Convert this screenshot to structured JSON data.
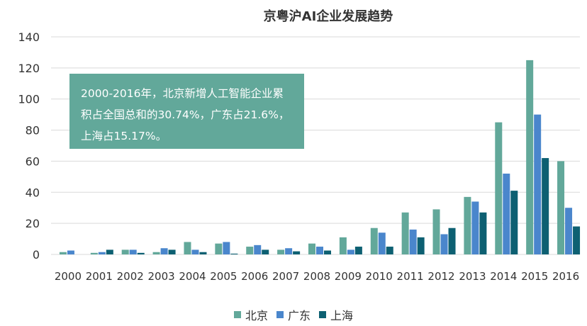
{
  "chart_data": {
    "type": "bar",
    "title": "京粤沪AI企业发展趋势",
    "xlabel": "",
    "ylabel": "",
    "ylim": [
      0,
      140
    ],
    "yticks": [
      0,
      20,
      40,
      60,
      80,
      100,
      120,
      140
    ],
    "grid": true,
    "legend_position": "bottom",
    "categories": [
      "2000",
      "2001",
      "2002",
      "2003",
      "2004",
      "2005",
      "2006",
      "2007",
      "2008",
      "2009",
      "2010",
      "2011",
      "2012",
      "2013",
      "2014",
      "2015",
      "2016"
    ],
    "series": [
      {
        "name": "北京",
        "color": "#62a89a",
        "values": [
          1.5,
          1,
          3,
          1.5,
          8,
          7,
          5,
          3,
          7,
          11,
          17,
          27,
          29,
          37,
          85,
          125,
          60
        ]
      },
      {
        "name": "广东",
        "color": "#4a86cc",
        "values": [
          2.5,
          1.5,
          3,
          4,
          3,
          8,
          6,
          4,
          5,
          3,
          14,
          16,
          13,
          34,
          52,
          90,
          30
        ]
      },
      {
        "name": "上海",
        "color": "#0d6072",
        "values": [
          0,
          3,
          1,
          3,
          1.5,
          0.5,
          3,
          2,
          2.5,
          5,
          5,
          11,
          17,
          27,
          41,
          62,
          18
        ]
      }
    ],
    "annotation": "2000-2016年，北京新增人工智能企业累积占全国总和的30.74%，广东占21.6%，上海占15.17%。"
  }
}
